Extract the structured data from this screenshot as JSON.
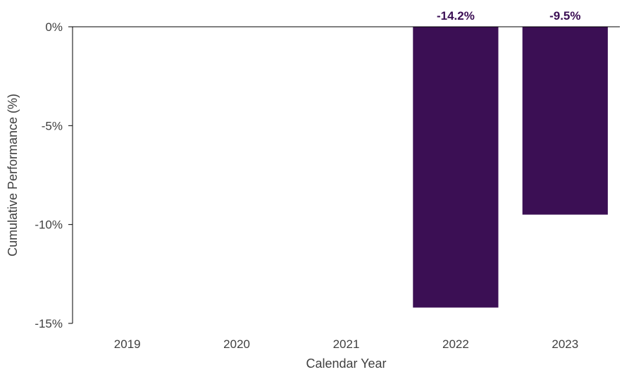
{
  "chart_data": {
    "type": "bar",
    "title": "",
    "xlabel": "Calendar Year",
    "ylabel": "Cumulative Performance (%)",
    "categories": [
      "2019",
      "2020",
      "2021",
      "2022",
      "2023"
    ],
    "values": [
      null,
      null,
      null,
      -14.2,
      -9.5
    ],
    "data_labels": [
      "",
      "",
      "",
      "-14.2%",
      "-9.5%"
    ],
    "ylim": [
      -15,
      0
    ],
    "yticks": [
      0,
      -5,
      -10,
      -15
    ],
    "ytick_labels": [
      "0%",
      "-5%",
      "-10%",
      "-15%"
    ],
    "grid": false,
    "legend": "none",
    "colors": {
      "bar": "#3b0f54",
      "label": "#3b0f54",
      "axis": "#000000",
      "text": "#404040"
    }
  }
}
